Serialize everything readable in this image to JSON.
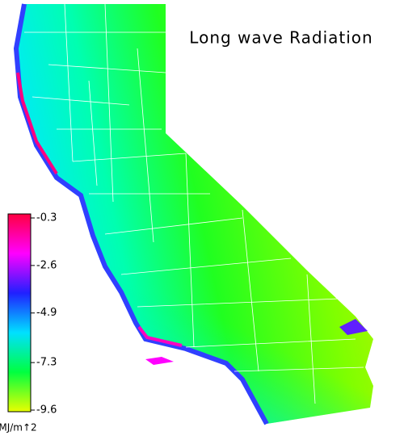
{
  "title": "Long wave Radiation",
  "colorbar": {
    "lim": [
      -0.3,
      -9.6
    ],
    "ticks": [
      -0.3,
      -2.6,
      -4.9,
      -7.3,
      -9.6
    ],
    "unit": "MJ/m↑2",
    "colors": [
      "#ff0040",
      "#ff00ff",
      "#2020ff",
      "#00e0ff",
      "#00ff40",
      "#e8ff00"
    ]
  }
}
